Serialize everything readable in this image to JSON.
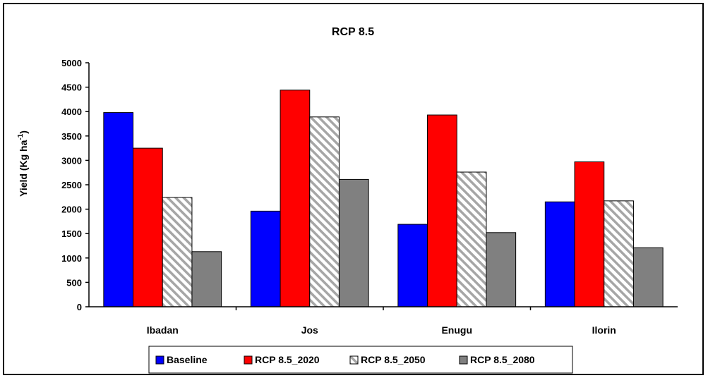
{
  "chart_data": {
    "type": "bar",
    "title": "RCP 8.5",
    "xlabel": "",
    "ylabel": "Yield (Kg ha",
    "ylabel_sup": "-1",
    "ylabel_close": ")",
    "ylim": [
      0,
      5000
    ],
    "yticks": [
      0,
      500,
      1000,
      1500,
      2000,
      2500,
      3000,
      3500,
      4000,
      4500,
      5000
    ],
    "grid": false,
    "legend": "bottom",
    "categories": [
      "Ibadan",
      "Jos",
      "Enugu",
      "Ilorin"
    ],
    "series": [
      {
        "name": "Baseline",
        "color": "#0000ff",
        "pattern": "solid",
        "values": [
          3980,
          1960,
          1690,
          2150
        ]
      },
      {
        "name": "RCP 8.5_2020",
        "color": "#ff0000",
        "pattern": "solid",
        "values": [
          3250,
          4440,
          3930,
          2970
        ]
      },
      {
        "name": "RCP 8.5_2050",
        "color": "#a6a6a6",
        "pattern": "hatch",
        "values": [
          2240,
          3890,
          2760,
          2170
        ]
      },
      {
        "name": "RCP 8.5_2080",
        "color": "#808080",
        "pattern": "solid",
        "values": [
          1130,
          2610,
          1520,
          1210
        ]
      }
    ]
  }
}
